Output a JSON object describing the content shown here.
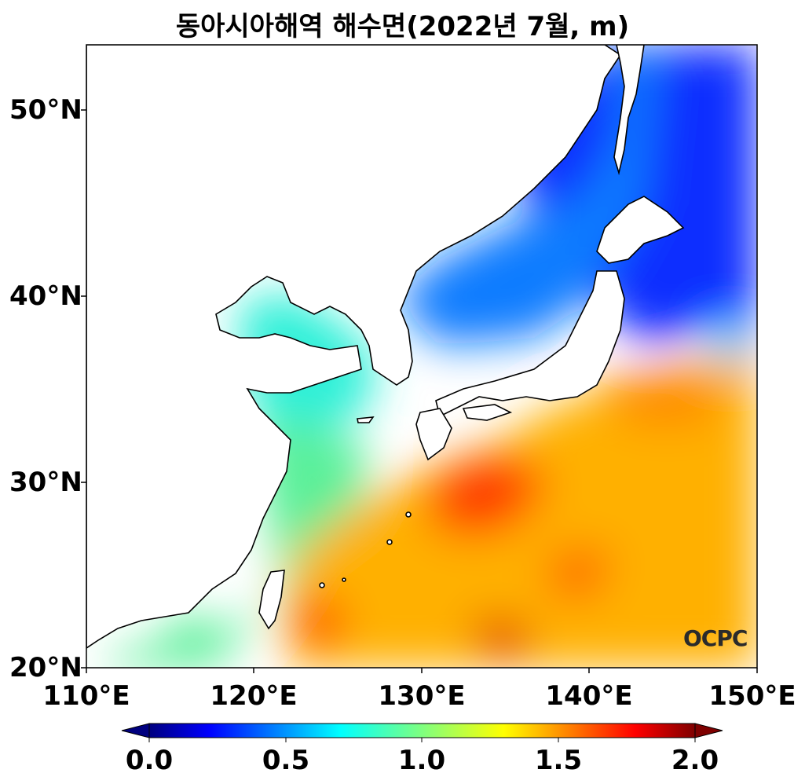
{
  "title": "동아시아해역 해수면(2022년 7월, m)",
  "logo": "OCPC",
  "map": {
    "lon_range": [
      110,
      150
    ],
    "lat_range": [
      20,
      53.5
    ],
    "lat_ticks": [
      "20°N",
      "30°N",
      "40°N",
      "50°N"
    ],
    "lon_ticks": [
      "110°E",
      "120°E",
      "130°E",
      "140°E",
      "150°E"
    ],
    "colorbar": {
      "min": 0.0,
      "max": 2.0,
      "ticks": [
        "0.0",
        "0.5",
        "1.0",
        "1.5",
        "2.0"
      ],
      "colormap": "jet",
      "extend": "both"
    }
  }
}
